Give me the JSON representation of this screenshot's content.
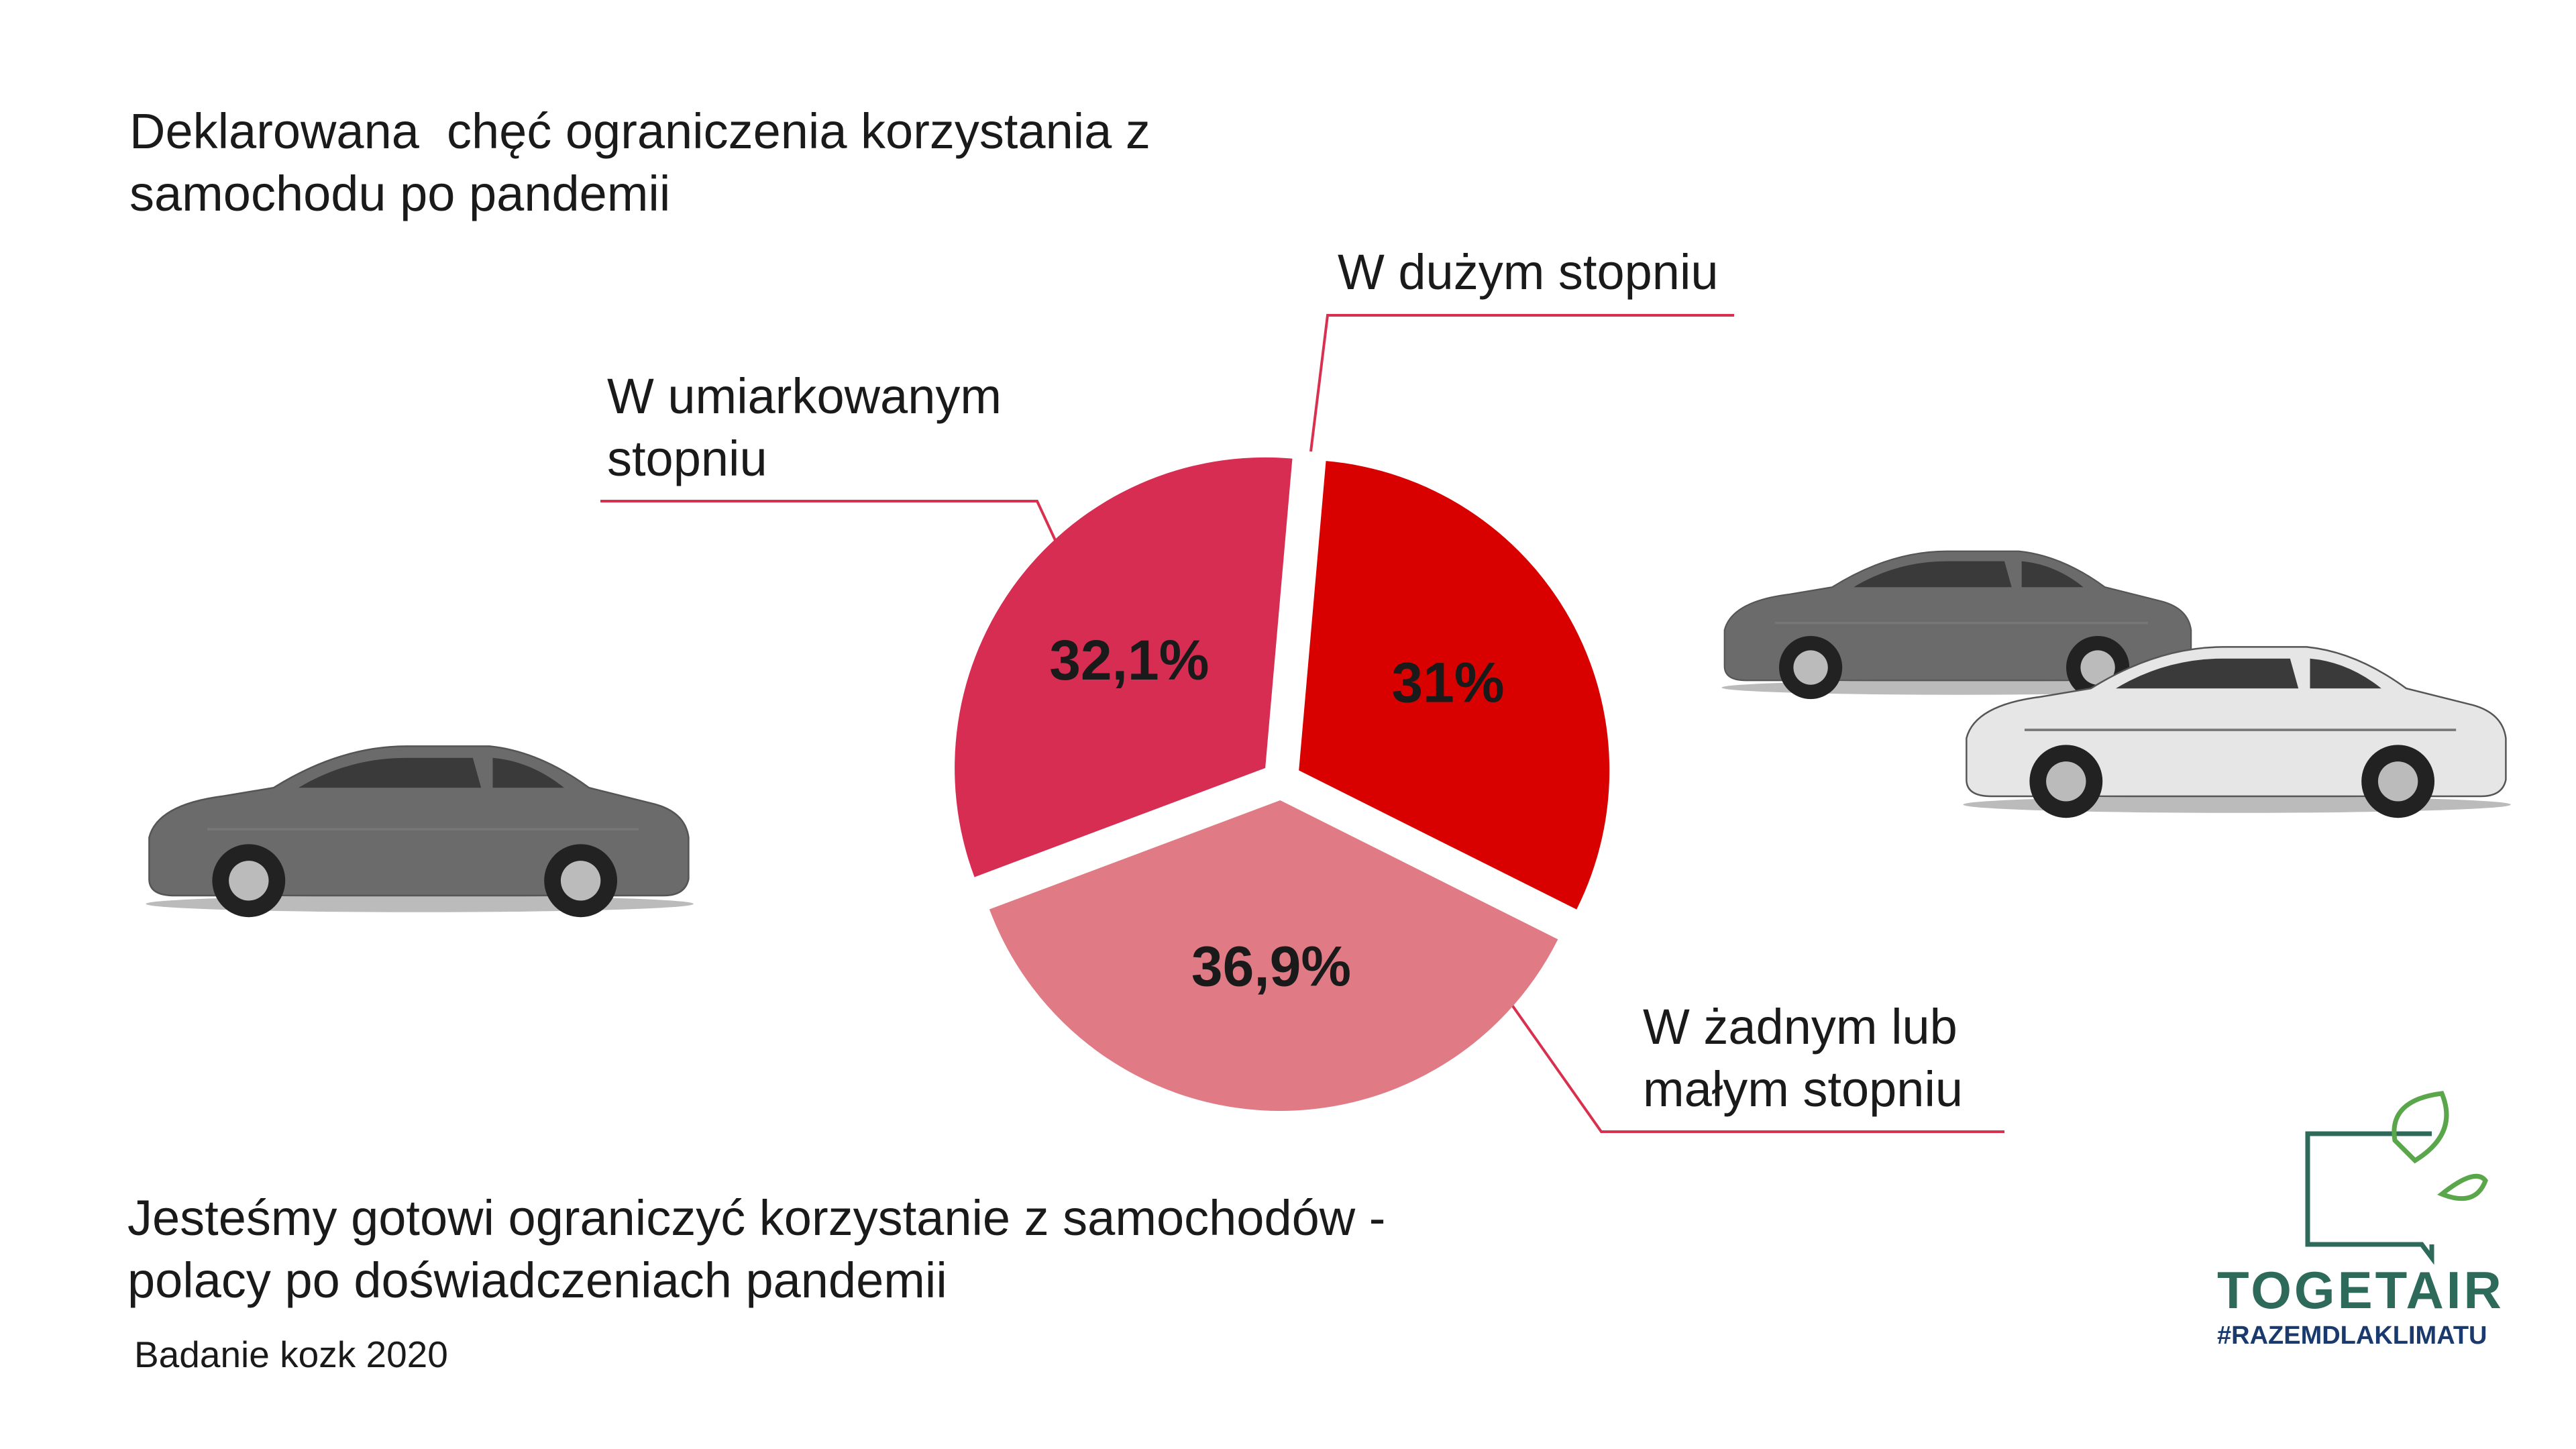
{
  "chart_data": {
    "type": "pie",
    "title": "Deklarowana  chęć ograniczenia korzystania z samochodu po pandemii",
    "subtitle": "Jesteśmy gotowi ograniczyć korzystanie z samochodów - polacy po doświadczeniach pandemii",
    "source": "Badanie kozk 2020",
    "categories": [
      "W dużym stopniu",
      "W żadnym lub małym stopniu",
      "W umiarkowanym stopniu"
    ],
    "values": [
      31,
      36.9,
      32.1
    ],
    "value_labels": [
      "31%",
      "36,9%",
      "32,1%"
    ],
    "colors": [
      "#d90000",
      "#e07b85",
      "#d72d52"
    ]
  },
  "logo": {
    "name": "TOGETAIR",
    "tagline": "#RAZEMDLAKLIMATU"
  }
}
